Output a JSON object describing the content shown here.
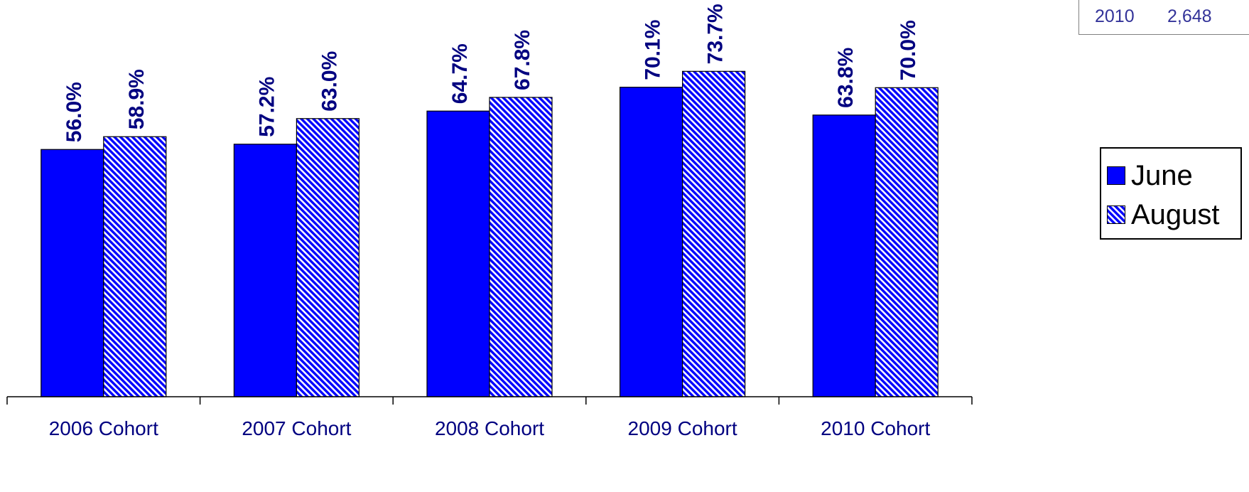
{
  "corner_note": {
    "year": "2010",
    "value": "2,648"
  },
  "colors": {
    "june": "#0000ff",
    "august_stripe": "#0000ff",
    "label": "#000080",
    "axis_label": "#000080"
  },
  "chart_data": {
    "type": "bar",
    "categories": [
      "2006 Cohort",
      "2007 Cohort",
      "2008 Cohort",
      "2009 Cohort",
      "2010 Cohort"
    ],
    "series": [
      {
        "name": "June",
        "values": [
          56.0,
          57.2,
          64.7,
          70.1,
          63.8
        ],
        "labels": [
          "56.0%",
          "57.2%",
          "64.7%",
          "70.1%",
          "63.8%"
        ]
      },
      {
        "name": "August",
        "values": [
          58.9,
          63.0,
          67.8,
          73.7,
          70.0
        ],
        "labels": [
          "58.9%",
          "63.0%",
          "67.8%",
          "73.7%",
          "70.0%"
        ]
      }
    ],
    "ylim": [
      0,
      80
    ],
    "title": "",
    "xlabel": "",
    "ylabel": "",
    "grid": false,
    "legend_position": "right"
  }
}
